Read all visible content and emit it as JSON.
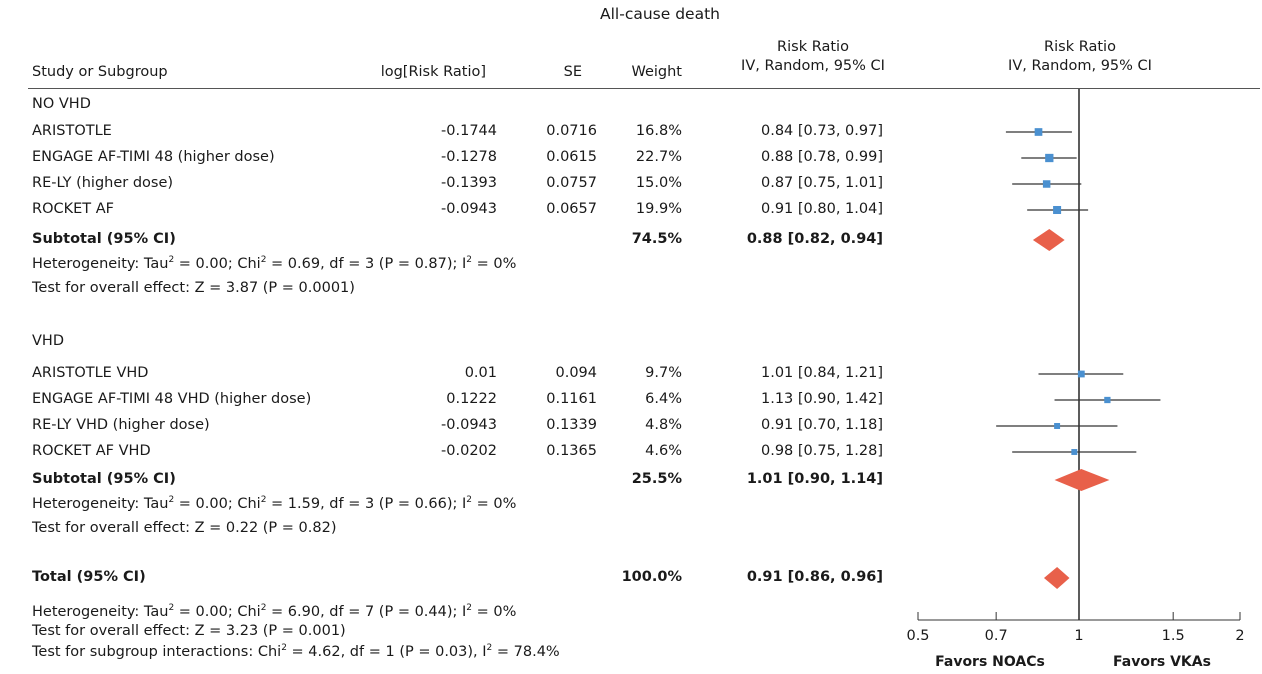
{
  "chart_data": {
    "type": "forest",
    "title": "All-cause death",
    "headers": {
      "study": "Study or Subgroup",
      "log_rr": "log[Risk Ratio]",
      "se": "SE",
      "weight": "Weight",
      "rr_line1": "Risk Ratio",
      "rr_line2": "IV, Random, 95% CI",
      "plot_line1": "Risk Ratio",
      "plot_line2": "IV, Random, 95% CI"
    },
    "groups": [
      {
        "name": "NO VHD",
        "studies": [
          {
            "name": "ARISTOTLE",
            "log_rr": "-0.1744",
            "se": "0.0716",
            "weight": "16.8%",
            "ci_text": "0.84 [0.73, 0.97]",
            "rr": 0.84,
            "lo": 0.73,
            "hi": 0.97,
            "w": 16.8
          },
          {
            "name": "ENGAGE AF-TIMI 48 (higher dose)",
            "log_rr": "-0.1278",
            "se": "0.0615",
            "weight": "22.7%",
            "ci_text": "0.88 [0.78, 0.99]",
            "rr": 0.88,
            "lo": 0.78,
            "hi": 0.99,
            "w": 22.7
          },
          {
            "name": "RE-LY (higher dose)",
            "log_rr": "-0.1393",
            "se": "0.0757",
            "weight": "15.0%",
            "ci_text": "0.87 [0.75, 1.01]",
            "rr": 0.87,
            "lo": 0.75,
            "hi": 1.01,
            "w": 15.0
          },
          {
            "name": "ROCKET AF",
            "log_rr": "-0.0943",
            "se": "0.0657",
            "weight": "19.9%",
            "ci_text": "0.91 [0.80, 1.04]",
            "rr": 0.91,
            "lo": 0.8,
            "hi": 1.04,
            "w": 19.9
          }
        ],
        "subtotal": {
          "label": "Subtotal (95% CI)",
          "weight": "74.5%",
          "ci_text": "0.88 [0.82, 0.94]",
          "rr": 0.88,
          "lo": 0.82,
          "hi": 0.94
        },
        "heterogeneity": {
          "prefix": "Heterogeneity: Tau",
          "sup1": "2",
          "mid": " = 0.00; Chi",
          "sup2": "2",
          "mid2": " = 0.69, df = 3 (P = 0.87); I",
          "sup3": "2",
          "suffix": " = 0%"
        },
        "overall": "Test for overall effect: Z = 3.87 (P = 0.0001)"
      },
      {
        "name": "VHD",
        "studies": [
          {
            "name": "ARISTOTLE VHD",
            "log_rr": "0.01",
            "se": "0.094",
            "weight": "9.7%",
            "ci_text": "1.01 [0.84, 1.21]",
            "rr": 1.01,
            "lo": 0.84,
            "hi": 1.21,
            "w": 9.7
          },
          {
            "name": "ENGAGE AF-TIMI 48 VHD (higher dose)",
            "log_rr": "0.1222",
            "se": "0.1161",
            "weight": "6.4%",
            "ci_text": "1.13 [0.90, 1.42]",
            "rr": 1.13,
            "lo": 0.9,
            "hi": 1.42,
            "w": 6.4
          },
          {
            "name": "RE-LY VHD (higher dose)",
            "log_rr": "-0.0943",
            "se": "0.1339",
            "weight": "4.8%",
            "ci_text": "0.91 [0.70, 1.18]",
            "rr": 0.91,
            "lo": 0.7,
            "hi": 1.18,
            "w": 4.8
          },
          {
            "name": "ROCKET AF VHD",
            "log_rr": "-0.0202",
            "se": "0.1365",
            "weight": "4.6%",
            "ci_text": "0.98 [0.75, 1.28]",
            "rr": 0.98,
            "lo": 0.75,
            "hi": 1.28,
            "w": 4.6
          }
        ],
        "subtotal": {
          "label": "Subtotal (95% CI)",
          "weight": "25.5%",
          "ci_text": "1.01 [0.90, 1.14]",
          "rr": 1.01,
          "lo": 0.9,
          "hi": 1.14
        },
        "heterogeneity": {
          "prefix": "Heterogeneity: Tau",
          "sup1": "2",
          "mid": " = 0.00; Chi",
          "sup2": "2",
          "mid2": " = 1.59, df = 3 (P = 0.66); I",
          "sup3": "2",
          "suffix": " = 0%"
        },
        "overall": "Test for overall effect: Z = 0.22 (P = 0.82)"
      }
    ],
    "total": {
      "label": "Total (95% CI)",
      "weight": "100.0%",
      "ci_text": "0.91 [0.86, 0.96]",
      "rr": 0.91,
      "lo": 0.86,
      "hi": 0.96,
      "heterogeneity": {
        "prefix": "Heterogeneity: Tau",
        "sup1": "2",
        "mid": " = 0.00; Chi",
        "sup2": "2",
        "mid2": " = 6.90, df = 7 (P = 0.44); I",
        "sup3": "2",
        "suffix": " = 0%"
      },
      "overall": "Test for overall effect: Z = 3.23 (P = 0.001)",
      "interaction": {
        "prefix": "Test for subgroup interactions: Chi",
        "sup1": "2",
        "mid": " = 4.62, df = 1 (P = 0.03), I",
        "sup2": "2",
        "suffix": " = 78.4%"
      }
    },
    "x_axis": {
      "scale": "log",
      "range": [
        0.5,
        2
      ],
      "ticks": [
        0.5,
        0.7,
        1,
        1.5,
        2
      ],
      "tick_labels": [
        "0.5",
        "0.7",
        "1",
        "1.5",
        "2"
      ],
      "null_value": 1
    },
    "favors_left": "Favors NOACs",
    "favors_right": "Favors VKAs",
    "colors": {
      "study_marker": "#4a90d0",
      "diamond": "#e8604a",
      "line": "#333333"
    }
  }
}
